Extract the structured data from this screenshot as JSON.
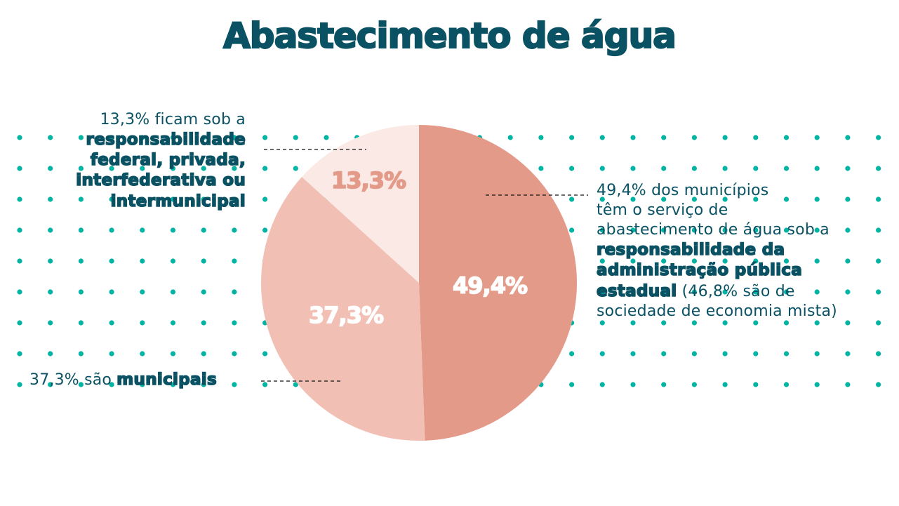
{
  "title": "Abastecimento de água",
  "colors": {
    "title_text": "#0a5263",
    "dots": "#00b4a4",
    "slice_estadual": "#e49a89",
    "slice_municipal": "#f2bfb4",
    "slice_federal": "#fbe9e5",
    "label_light": "#ffffff",
    "label_federal": "#e49a89",
    "leader": "#111111"
  },
  "annotations": {
    "federal": {
      "light": "13,3% ficam sob a",
      "bold_lines": [
        "responsabilidade",
        "federal, privada,",
        "interfederativa ou",
        "intermunicipal"
      ]
    },
    "estadual": {
      "light_lines": [
        "49,4% dos municípios",
        "têm o serviço de",
        "abastecimento de água sob a"
      ],
      "bold_lines": [
        "responsabilidade da",
        "administração pública",
        "estadual"
      ],
      "tail_inline": " (46,8% são de",
      "tail_line": "sociedade de economia mista)"
    },
    "municipal": {
      "light": "37,3% são ",
      "bold": "municipais"
    }
  },
  "chart_data": {
    "type": "pie",
    "title": "Abastecimento de água",
    "categories": [
      "Administração pública estadual",
      "Municipais",
      "Federal, privada, interfederativa ou intermunicipal"
    ],
    "values": [
      49.4,
      37.3,
      13.3
    ],
    "labels": [
      "49,4%",
      "37,3%",
      "13,3%"
    ],
    "colors": [
      "#e49a89",
      "#f2bfb4",
      "#fbe9e5"
    ],
    "start_angle_deg": 0,
    "direction": "clockwise",
    "notes": [
      "46,8% são de sociedade de economia mista"
    ],
    "legend": "none (annotations with leader lines)"
  }
}
